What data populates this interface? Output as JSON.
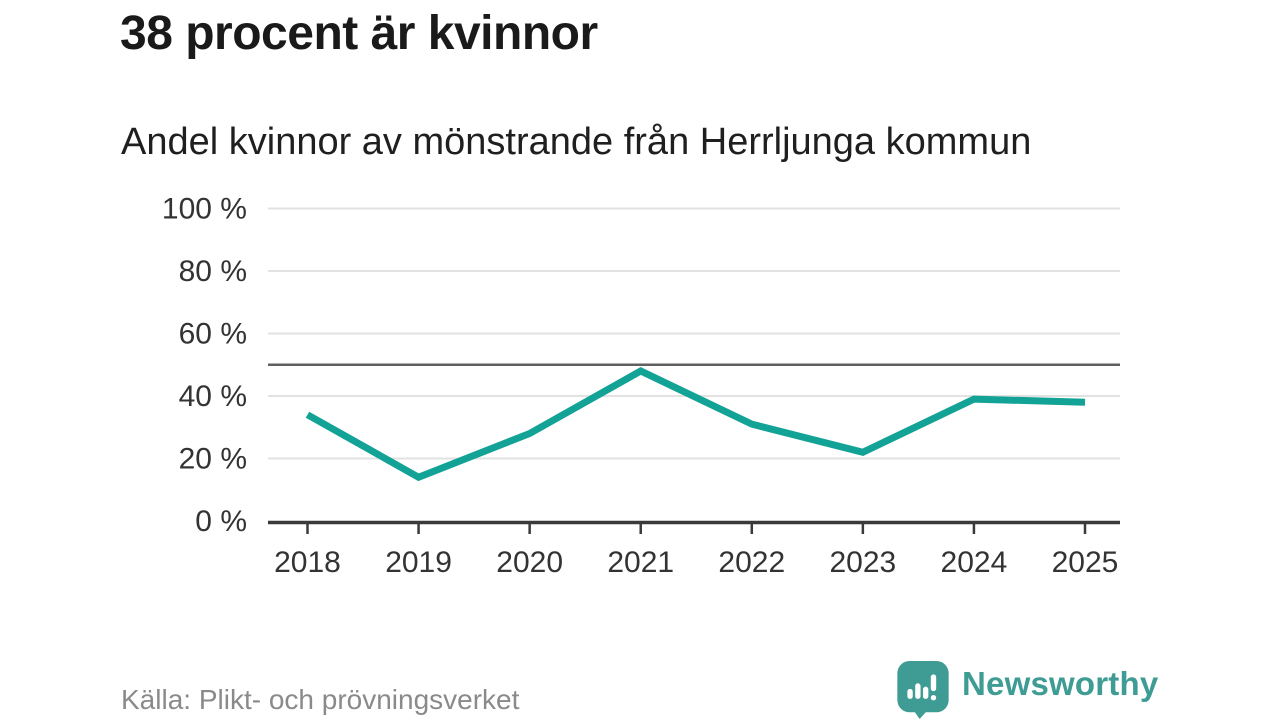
{
  "title": "38 procent är kvinnor",
  "subtitle": "Andel kvinnor av mönstrande från Herrljunga kommun",
  "source": "Källa: Plikt- och prövningsverket",
  "logo": {
    "text": "Newsworthy",
    "icon": "bar-chart-speech-bubble-icon"
  },
  "colors": {
    "line": "#13a296",
    "reference_line": "#5f5f5f",
    "grid": "#e2e2e2",
    "axis": "#3a3a3a",
    "axis_text": "#333333",
    "title_text": "#1a1a1a",
    "subtitle_text": "#1f1f1f",
    "source_text": "#8a8a8a",
    "brand_teal": "#3f9c94"
  },
  "chart_data": {
    "type": "line",
    "title": "38 procent är kvinnor",
    "subtitle": "Andel kvinnor av mönstrande från Herrljunga kommun",
    "categories": [
      "2018",
      "2019",
      "2020",
      "2021",
      "2022",
      "2023",
      "2024",
      "2025"
    ],
    "series": [
      {
        "name": "Andel kvinnor av mönstrande",
        "values": [
          34,
          14,
          28,
          48,
          31,
          22,
          39,
          38
        ]
      }
    ],
    "unit": "%",
    "xlabel": "",
    "ylabel": "",
    "ylim": [
      0,
      100
    ],
    "yticks": [
      0,
      20,
      40,
      60,
      80,
      100
    ],
    "ytick_labels": [
      "0 %",
      "20 %",
      "40 %",
      "60 %",
      "80 %",
      "100 %"
    ],
    "reference_line": 50,
    "grid": true,
    "legend": "none",
    "line_width": 7
  }
}
